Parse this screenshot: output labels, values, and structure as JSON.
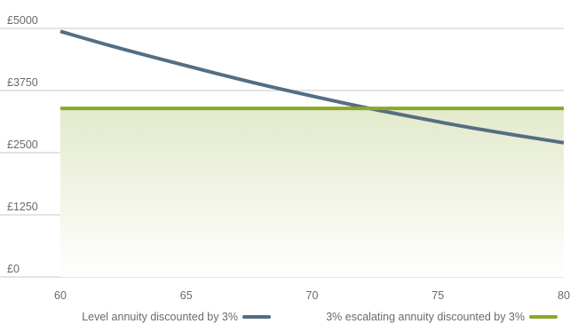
{
  "chart_data": {
    "type": "line",
    "x_ticks": [
      "60",
      "65",
      "70",
      "75",
      "80"
    ],
    "y_ticks": [
      "£0",
      "£1250",
      "£2500",
      "£3750",
      "£5000"
    ],
    "xlim": [
      60,
      80
    ],
    "ylim": [
      0,
      5000
    ],
    "grid": true,
    "legend_position": "bottom",
    "series": [
      {
        "name": "Level annuity discounted by 3%",
        "color": "#546e82",
        "x": [
          60,
          62,
          64,
          66,
          68,
          70,
          72,
          74,
          76,
          78,
          80
        ],
        "values": [
          4940,
          4650,
          4380,
          4120,
          3870,
          3640,
          3420,
          3220,
          3030,
          2860,
          2700
        ]
      },
      {
        "name": "3% escalating annuity discounted by 3%",
        "color": "#8aa82a",
        "fill": "#e8edd2",
        "x": [
          60,
          80
        ],
        "values": [
          3390,
          3390
        ]
      }
    ]
  }
}
